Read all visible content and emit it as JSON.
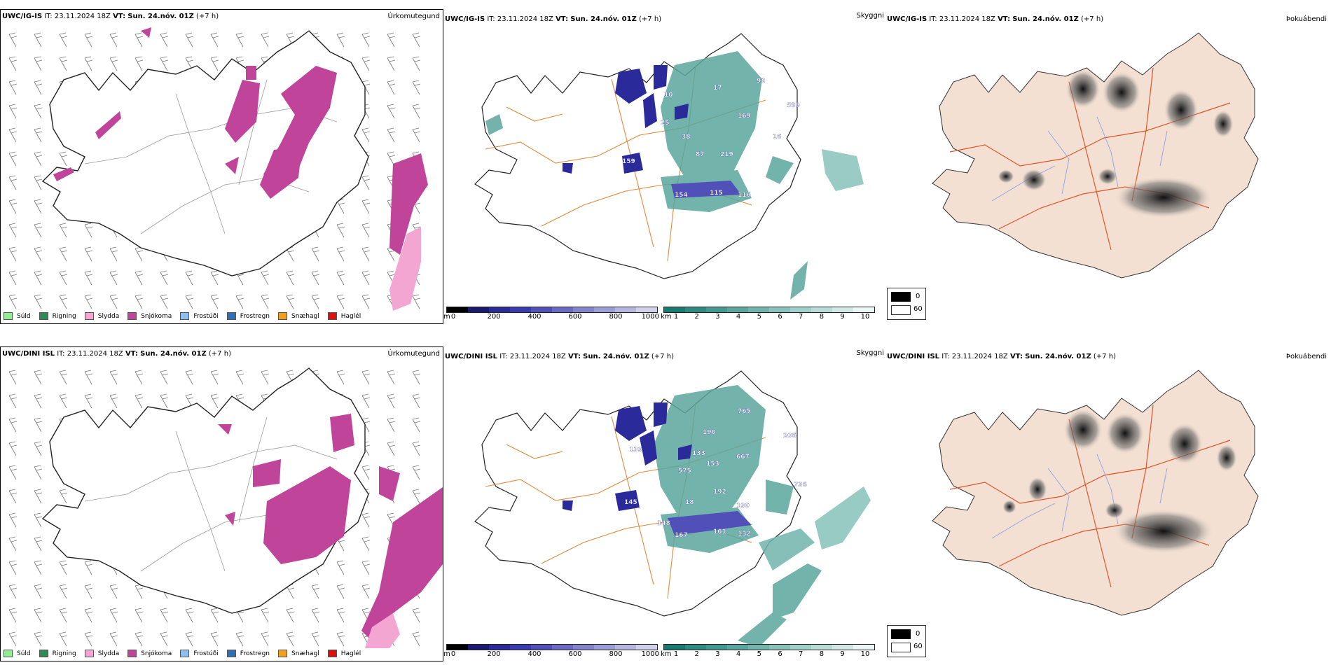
{
  "rows": [
    {
      "model": "UWC/IG-IS",
      "it_label": "IT:",
      "it_value": "23.11.2024 18Z",
      "vt_label": "VT:",
      "vt_value": "Sun. 24.nóv. 01Z",
      "lead": "(+7 h)"
    },
    {
      "model": "UWC/DINI ISL",
      "it_label": "IT:",
      "it_value": "23.11.2024 18Z",
      "vt_label": "VT:",
      "vt_value": "Sun. 24.nóv. 01Z",
      "lead": "(+7 h)"
    }
  ],
  "panels": {
    "precip_type": {
      "title": "Úrkomutegund"
    },
    "cloud_base": {
      "title": "Skyggni"
    },
    "fog": {
      "title": "Þokuábendi"
    }
  },
  "precip_legend": [
    {
      "label": "Súld",
      "color": "#90ee90"
    },
    {
      "label": "Rigning",
      "color": "#2e8b57"
    },
    {
      "label": "Slydda",
      "color": "#f4a6d3"
    },
    {
      "label": "Snjókoma",
      "color": "#c0449a"
    },
    {
      "label": "Frostúði",
      "color": "#8fbfee"
    },
    {
      "label": "Frostregn",
      "color": "#2f6fb5"
    },
    {
      "label": "Snæhagl",
      "color": "#f0a020"
    },
    {
      "label": "Haglél",
      "color": "#e01010"
    }
  ],
  "cloud_base_scale": {
    "unit": "m",
    "ticks": [
      "0",
      "200",
      "400",
      "600",
      "800",
      "1000"
    ],
    "colors": [
      "#000000",
      "#1a1a6e",
      "#2a2a9a",
      "#3b3bb0",
      "#5050b8",
      "#6a6ac4",
      "#8484cc",
      "#9c9cd6",
      "#b6b6e0",
      "#d0d0ec"
    ]
  },
  "visibility_scale": {
    "unit": "km",
    "ticks": [
      "1",
      "2",
      "3",
      "4",
      "5",
      "6",
      "7",
      "8",
      "9",
      "10"
    ],
    "colors": [
      "#1a7a70",
      "#2e8a80",
      "#449890",
      "#5aa69e",
      "#70b4ac",
      "#88c2bb",
      "#a0d0ca",
      "#b8dcd8",
      "#d2e9e6",
      "#ecf6f4"
    ]
  },
  "fog_scale": {
    "high": "0",
    "low": "60"
  },
  "cloud_labels_row1": [
    "159",
    "154",
    "115",
    "116",
    "169",
    "92",
    "599",
    "219",
    "38",
    "87",
    "25",
    "16",
    "17",
    "10"
  ],
  "cloud_labels_row2": [
    "145",
    "167",
    "161",
    "132",
    "190",
    "765",
    "206",
    "667",
    "736",
    "192",
    "575",
    "153",
    "133",
    "190",
    "18",
    "148",
    "139"
  ]
}
